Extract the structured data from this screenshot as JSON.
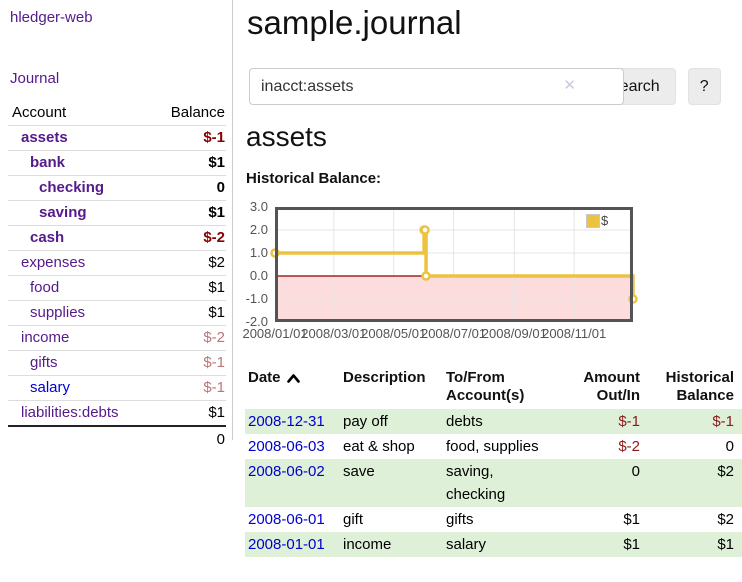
{
  "app": {
    "brand": "hledger-web",
    "nav_journal": "Journal"
  },
  "colors": {
    "link_purple": "#551a8b",
    "link_blue": "#0000dd",
    "negative_strong": "#8b0000",
    "negative_muted": "#bb7676",
    "row_stripe_green": "#dff0d8",
    "series_gold": "#edc240"
  },
  "sidebar": {
    "header": {
      "account": "Account",
      "balance": "Balance"
    },
    "accounts": [
      {
        "name": "assets",
        "depth": 0,
        "bold": true,
        "link_color": "purple",
        "balance": "$-1",
        "balance_style": "negs",
        "balance_bold": true
      },
      {
        "name": "bank",
        "depth": 1,
        "bold": true,
        "link_color": "purple",
        "balance": "$1",
        "balance_style": "pos",
        "balance_bold": true
      },
      {
        "name": "checking",
        "depth": 2,
        "bold": true,
        "link_color": "purple",
        "balance": "0",
        "balance_style": "pos",
        "balance_bold": true
      },
      {
        "name": "saving",
        "depth": 2,
        "bold": true,
        "link_color": "purple",
        "balance": "$1",
        "balance_style": "pos",
        "balance_bold": true
      },
      {
        "name": "cash",
        "depth": 1,
        "bold": true,
        "link_color": "purple",
        "balance": "$-2",
        "balance_style": "negs",
        "balance_bold": true
      },
      {
        "name": "expenses",
        "depth": 0,
        "bold": false,
        "link_color": "purple",
        "balance": "$2",
        "balance_style": "pos",
        "balance_bold": false
      },
      {
        "name": "food",
        "depth": 1,
        "bold": false,
        "link_color": "purple",
        "balance": "$1",
        "balance_style": "pos",
        "balance_bold": false
      },
      {
        "name": "supplies",
        "depth": 1,
        "bold": false,
        "link_color": "purple",
        "balance": "$1",
        "balance_style": "pos",
        "balance_bold": false
      },
      {
        "name": "income",
        "depth": 0,
        "bold": false,
        "link_color": "purple",
        "balance": "$-2",
        "balance_style": "negm",
        "balance_bold": false
      },
      {
        "name": "gifts",
        "depth": 1,
        "bold": false,
        "link_color": "purple",
        "balance": "$-1",
        "balance_style": "negm",
        "balance_bold": false
      },
      {
        "name": "salary",
        "depth": 1,
        "bold": false,
        "link_color": "blue",
        "balance": "$-1",
        "balance_style": "negm",
        "balance_bold": false
      },
      {
        "name": "liabilities:debts",
        "depth": 0,
        "bold": false,
        "link_color": "purple",
        "balance": "$1",
        "balance_style": "pos",
        "balance_bold": false
      }
    ],
    "total": "0"
  },
  "main": {
    "title": "sample.journal",
    "search": {
      "value": "inacct:assets",
      "clear_icon": "✕",
      "button": "Search",
      "help": "?"
    },
    "heading": "assets"
  },
  "chart_data": {
    "type": "line",
    "title": "Historical Balance:",
    "step": true,
    "xrange": [
      "2008-01-01",
      "2008-12-31"
    ],
    "ylim": [
      -2,
      3
    ],
    "yticks": [
      {
        "v": 3,
        "label": "3.0"
      },
      {
        "v": 2,
        "label": "2.0"
      },
      {
        "v": 1,
        "label": "1.0"
      },
      {
        "v": 0,
        "label": "0.0"
      },
      {
        "v": -1,
        "label": "-1.0"
      },
      {
        "v": -2,
        "label": "-2.0"
      }
    ],
    "xticks": [
      {
        "date": "2008-01-01",
        "label": "2008/01/01"
      },
      {
        "date": "2008-03-01",
        "label": "2008/03/01"
      },
      {
        "date": "2008-05-01",
        "label": "2008/05/01"
      },
      {
        "date": "2008-07-01",
        "label": "2008/07/01"
      },
      {
        "date": "2008-09-01",
        "label": "2008/09/01"
      },
      {
        "date": "2008-11-01",
        "label": "2008/11/01"
      }
    ],
    "series": [
      {
        "name": "$",
        "color": "#edc240",
        "points": [
          [
            "2008-01-01",
            1
          ],
          [
            "2008-06-01",
            2
          ],
          [
            "2008-06-02",
            2
          ],
          [
            "2008-06-03",
            0
          ],
          [
            "2008-12-31",
            -1
          ]
        ]
      }
    ],
    "legend_position": "top-right",
    "grid": true,
    "colors": {
      "negative_fill": "#fcdcdc",
      "zero_line": "#8b0000",
      "gridline": "#e6e6e6",
      "border": "#545454",
      "tick_text": "#545454"
    }
  },
  "table": {
    "headers": [
      {
        "key": "date",
        "label": "Date",
        "sorted": "asc",
        "align": "left"
      },
      {
        "key": "description",
        "label": "Description",
        "sorted": null,
        "align": "left"
      },
      {
        "key": "accounts",
        "label": "To/From Account(s)",
        "sorted": null,
        "align": "left"
      },
      {
        "key": "amount",
        "label": "Amount Out/In",
        "sorted": null,
        "align": "right"
      },
      {
        "key": "balance",
        "label": "Historical Balance",
        "sorted": null,
        "align": "right"
      }
    ],
    "rows": [
      {
        "date": "2008-12-31",
        "description": "pay off",
        "accounts": "debts",
        "amount": "$-1",
        "amount_neg": true,
        "balance": "$-1",
        "balance_neg": true
      },
      {
        "date": "2008-06-03",
        "description": "eat & shop",
        "accounts": "food, supplies",
        "amount": "$-2",
        "amount_neg": true,
        "balance": "0",
        "balance_neg": false
      },
      {
        "date": "2008-06-02",
        "description": "save",
        "accounts": "saving, checking",
        "amount": "0",
        "amount_neg": false,
        "balance": "$2",
        "balance_neg": false
      },
      {
        "date": "2008-06-01",
        "description": "gift",
        "accounts": "gifts",
        "amount": "$1",
        "amount_neg": false,
        "balance": "$2",
        "balance_neg": false
      },
      {
        "date": "2008-01-01",
        "description": "income",
        "accounts": "salary",
        "amount": "$1",
        "amount_neg": false,
        "balance": "$1",
        "balance_neg": false
      }
    ]
  }
}
